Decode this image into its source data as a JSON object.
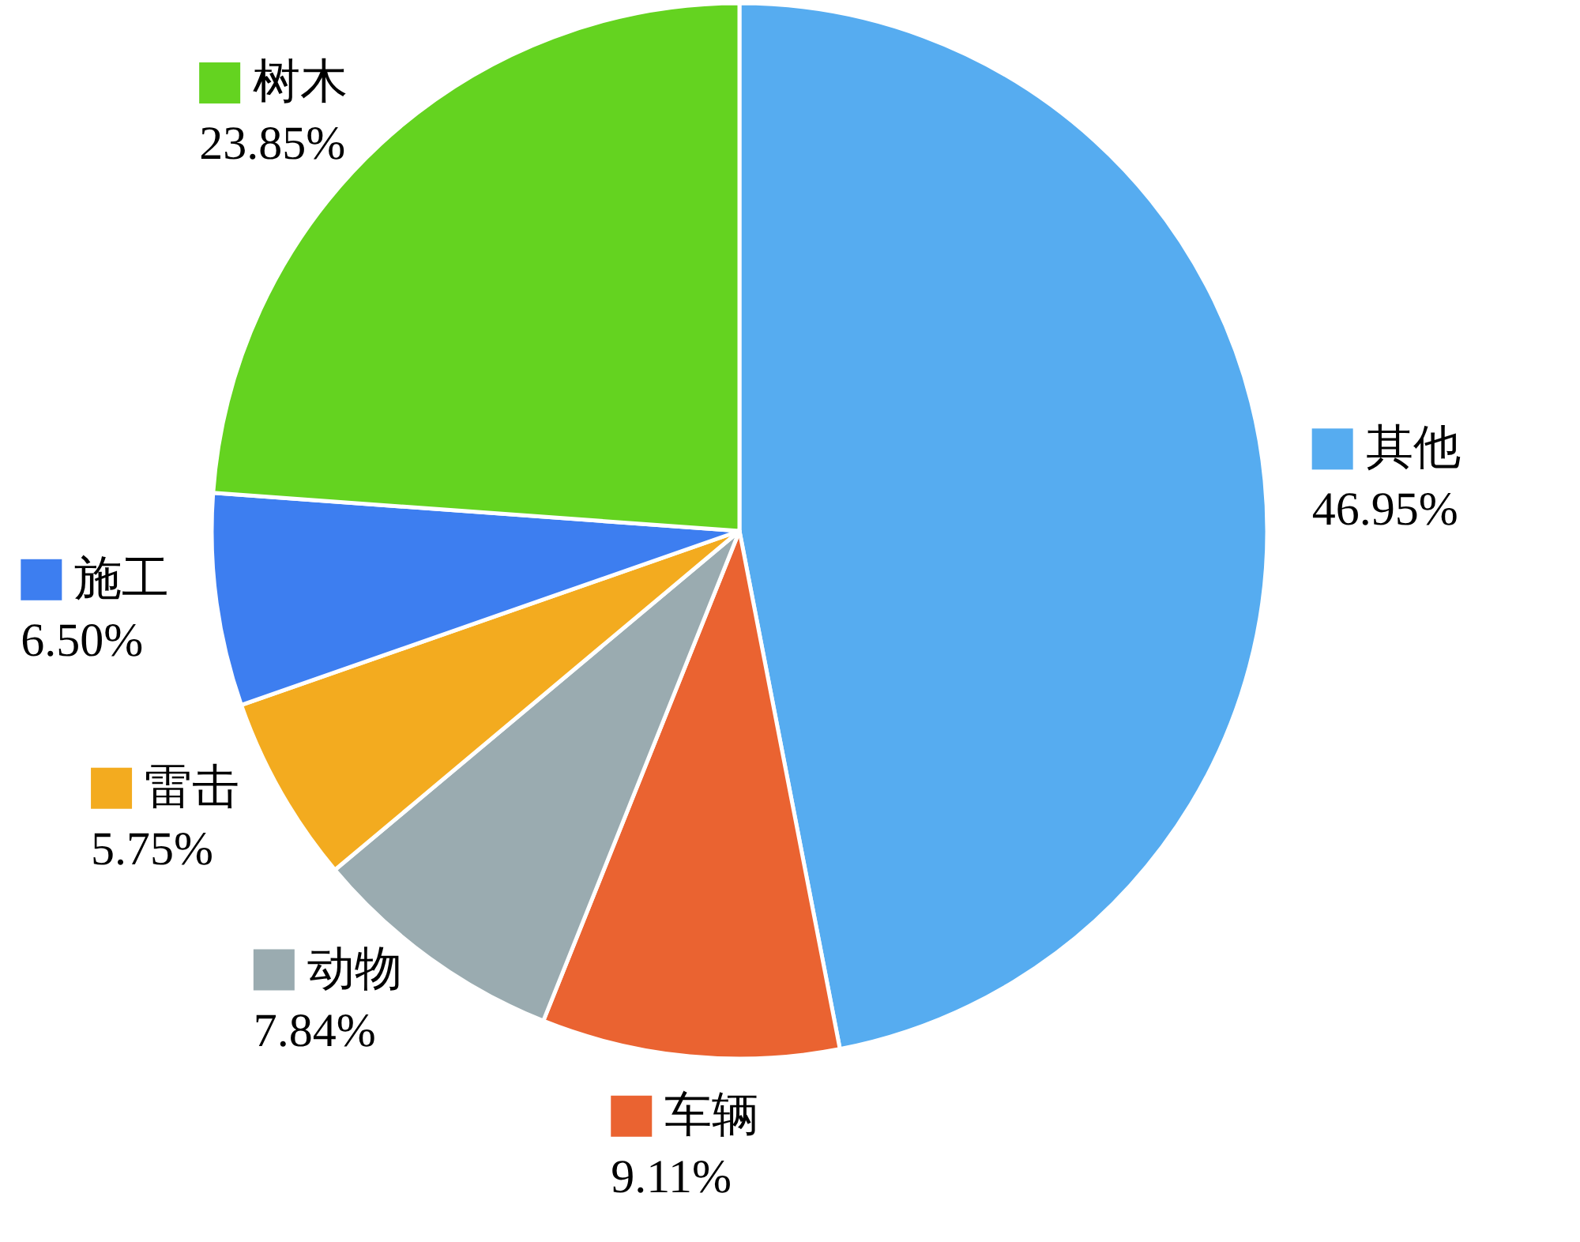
{
  "chart_data": {
    "type": "pie",
    "categories": [
      "其他",
      "车辆",
      "动物",
      "雷击",
      "施工",
      "树木"
    ],
    "values": [
      46.95,
      9.11,
      7.84,
      5.75,
      6.5,
      23.85
    ],
    "colors": [
      "#56acf0",
      "#ea6331",
      "#9aabb0",
      "#f3ab1f",
      "#3d7ef0",
      "#64d320"
    ],
    "value_labels": [
      "46.95%",
      "9.11%",
      "7.84%",
      "5.75%",
      "6.50%",
      "23.85%"
    ],
    "legend": "left"
  }
}
